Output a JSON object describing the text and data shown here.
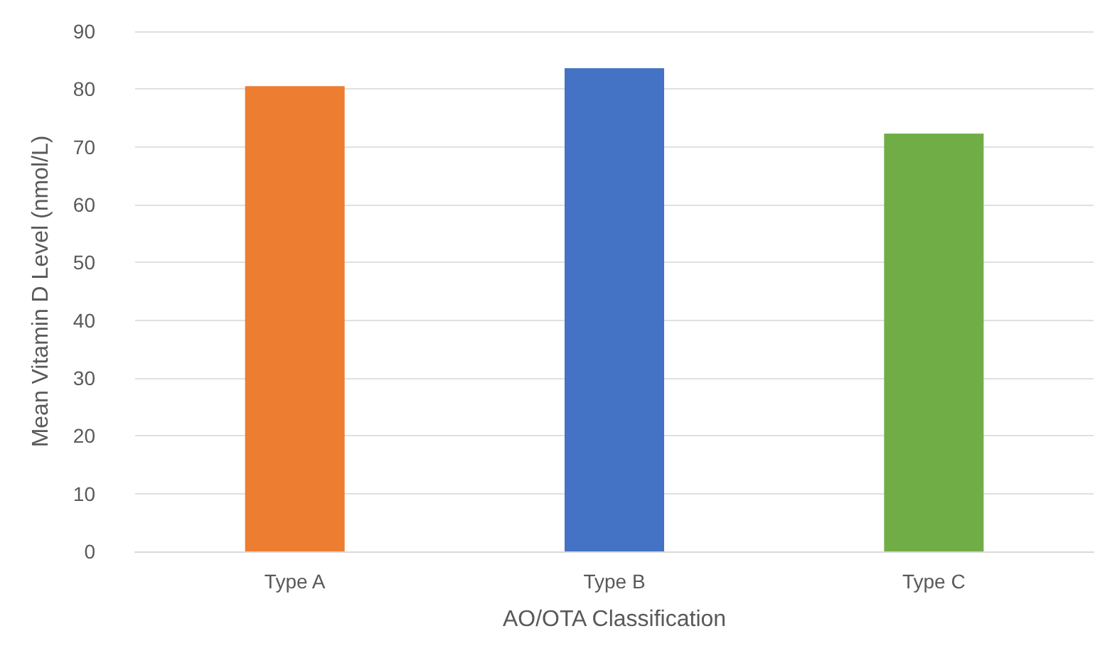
{
  "chart_data": {
    "type": "bar",
    "xlabel": "AO/OTA Classification",
    "ylabel": "Mean Vitamin D Level (nmol/L)",
    "categories": [
      "Type A",
      "Type B",
      "Type C"
    ],
    "values": [
      80.5,
      83.6,
      72.3
    ],
    "colors": [
      "#ed7d31",
      "#4472c4",
      "#70ad47"
    ],
    "ylim": [
      0,
      90
    ],
    "yticks": [
      0,
      10,
      20,
      30,
      40,
      50,
      60,
      70,
      80,
      90
    ],
    "grid": "y"
  }
}
